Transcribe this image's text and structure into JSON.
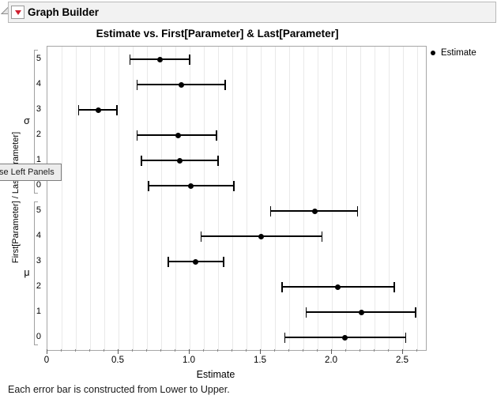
{
  "window": {
    "outline_title": "Graph Builder"
  },
  "tooltip": {
    "text": "se Left Panels"
  },
  "colors": {
    "red_triangle": "#cf2030",
    "error_bar": "#000000",
    "gridline": "#e9e9e9",
    "frame": "#a6a6a6",
    "header_bg": "#f2f2f2"
  },
  "chart_data": {
    "type": "scatter",
    "subtype": "horizontal-error-bars",
    "title": "Estimate vs. First[Parameter] & Last[Parameter]",
    "xlabel": "Estimate",
    "ylabel": "First[Parameter] / Last[Parameter]",
    "legend": {
      "label": "Estimate",
      "marker": "dot",
      "position": "top-right"
    },
    "xlim": [
      0,
      2.66
    ],
    "x_major_ticks": [
      0,
      0.5,
      1.0,
      1.5,
      2.0,
      2.5
    ],
    "x_tick_labels": [
      "0",
      "0.5",
      "1.0",
      "1.5",
      "2.0",
      "2.5"
    ],
    "minor_tick_step": 0.1,
    "grid": "minor-vertical",
    "groups": [
      {
        "label": "σ",
        "rows": [
          {
            "category": "5",
            "lower": 0.58,
            "estimate": 0.79,
            "upper": 1.0
          },
          {
            "category": "4",
            "lower": 0.63,
            "estimate": 0.94,
            "upper": 1.25
          },
          {
            "category": "3",
            "lower": 0.22,
            "estimate": 0.36,
            "upper": 0.49
          },
          {
            "category": "2",
            "lower": 0.63,
            "estimate": 0.92,
            "upper": 1.19
          },
          {
            "category": "1",
            "lower": 0.66,
            "estimate": 0.93,
            "upper": 1.2
          },
          {
            "category": "0",
            "lower": 0.71,
            "estimate": 1.01,
            "upper": 1.31
          }
        ]
      },
      {
        "label": "μ",
        "rows": [
          {
            "category": "5",
            "lower": 1.57,
            "estimate": 1.88,
            "upper": 2.18
          },
          {
            "category": "4",
            "lower": 1.08,
            "estimate": 1.5,
            "upper": 1.93
          },
          {
            "category": "3",
            "lower": 0.85,
            "estimate": 1.04,
            "upper": 1.24
          },
          {
            "category": "2",
            "lower": 1.65,
            "estimate": 2.04,
            "upper": 2.44
          },
          {
            "category": "1",
            "lower": 1.82,
            "estimate": 2.21,
            "upper": 2.59
          },
          {
            "category": "0",
            "lower": 1.67,
            "estimate": 2.09,
            "upper": 2.52
          }
        ]
      }
    ],
    "footnote": "Each error bar is constructed from Lower to Upper."
  }
}
